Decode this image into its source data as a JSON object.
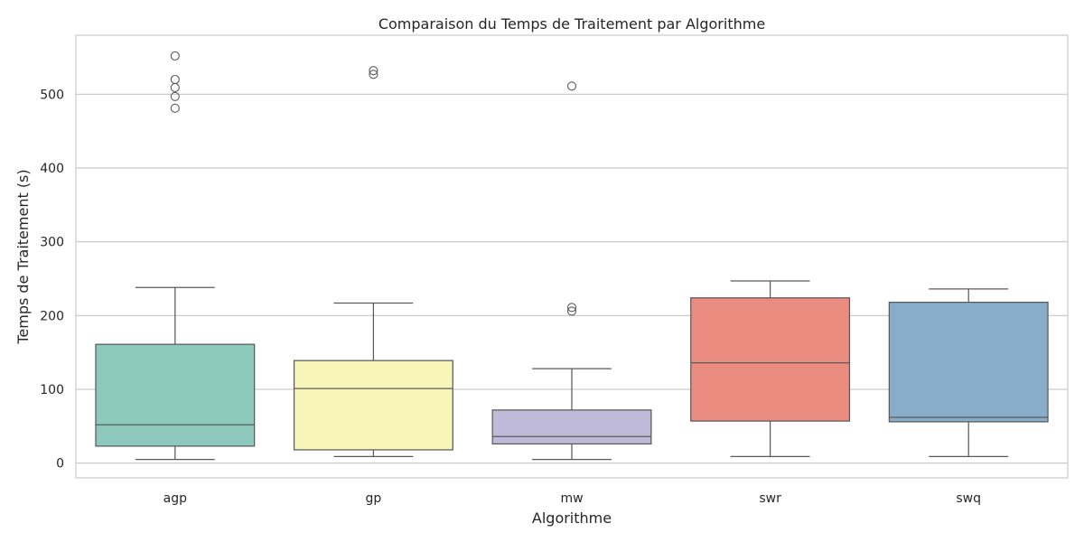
{
  "chart_data": {
    "type": "box",
    "title": "Comparaison du Temps de Traitement par Algorithme",
    "xlabel": "Algorithme",
    "ylabel": "Temps de Traitement (s)",
    "ylim": [
      -20,
      580
    ],
    "yticks": [
      0,
      100,
      200,
      300,
      400,
      500
    ],
    "grid": true,
    "categories": [
      "agp",
      "gp",
      "mw",
      "swr",
      "swq"
    ],
    "colors": [
      "#8dc9bd",
      "#f7f5b8",
      "#bebad8",
      "#ea8c80",
      "#87adcb"
    ],
    "series": [
      {
        "category": "agp",
        "whisker_low": 5,
        "q1": 23,
        "median": 52,
        "q3": 161,
        "whisker_high": 238,
        "outliers": [
          481,
          497,
          509,
          520,
          552
        ]
      },
      {
        "category": "gp",
        "whisker_low": 9,
        "q1": 18,
        "median": 101,
        "q3": 139,
        "whisker_high": 217,
        "outliers": [
          527,
          532
        ]
      },
      {
        "category": "mw",
        "whisker_low": 5,
        "q1": 26,
        "median": 36,
        "q3": 72,
        "whisker_high": 128,
        "outliers": [
          206,
          211,
          511
        ]
      },
      {
        "category": "swr",
        "whisker_low": 9,
        "q1": 57,
        "median": 136,
        "q3": 224,
        "whisker_high": 247,
        "outliers": []
      },
      {
        "category": "swq",
        "whisker_low": 9,
        "q1": 56,
        "median": 62,
        "q3": 218,
        "whisker_high": 236,
        "outliers": []
      }
    ]
  }
}
